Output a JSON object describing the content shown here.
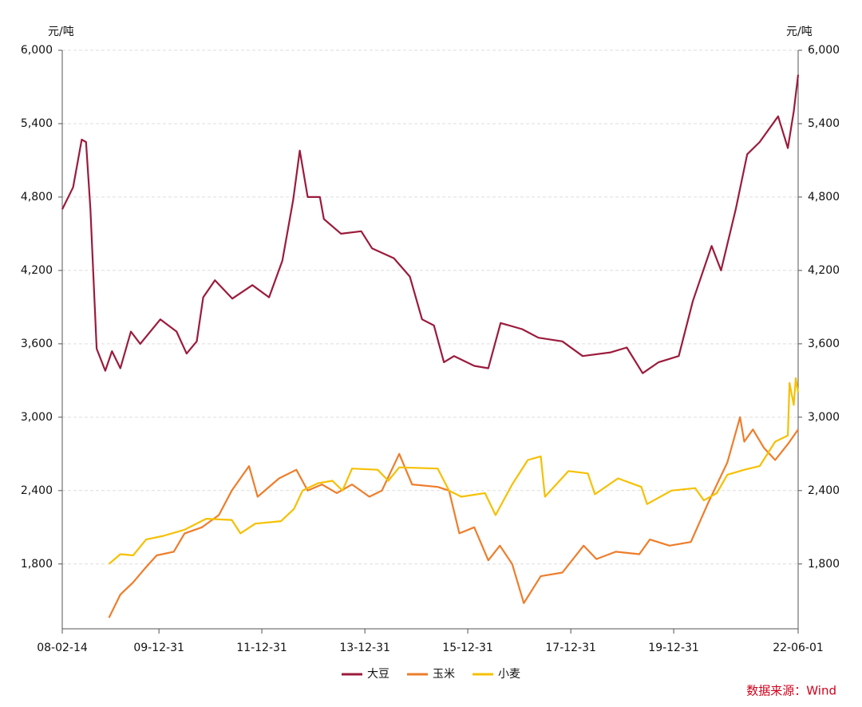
{
  "chart_data": {
    "type": "line",
    "y_unit": "元/吨",
    "source": "数据来源：Wind",
    "xlim": [
      "2008-02-14",
      "2022-06-01"
    ],
    "xticks": [
      {
        "value": "2008-02-14",
        "label": "08-02-14"
      },
      {
        "value": "2009-12-31",
        "label": "09-12-31"
      },
      {
        "value": "2011-12-31",
        "label": "11-12-31"
      },
      {
        "value": "2013-12-31",
        "label": "13-12-31"
      },
      {
        "value": "2015-12-31",
        "label": "15-12-31"
      },
      {
        "value": "2017-12-31",
        "label": "17-12-31"
      },
      {
        "value": "2019-12-31",
        "label": "19-12-31"
      },
      {
        "value": "2022-06-01",
        "label": "22-06-01"
      }
    ],
    "ylim": [
      1270,
      6000
    ],
    "yticks": [
      {
        "value": 1800,
        "label": "1,800"
      },
      {
        "value": 2400,
        "label": "2,400"
      },
      {
        "value": 3000,
        "label": "3,000"
      },
      {
        "value": 3600,
        "label": "3,600"
      },
      {
        "value": 4200,
        "label": "4,200"
      },
      {
        "value": 4800,
        "label": "4,800"
      },
      {
        "value": 5400,
        "label": "5,400"
      },
      {
        "value": 6000,
        "label": "6,000"
      }
    ],
    "grid": true,
    "legend": "bottom",
    "series": [
      {
        "name": "大豆",
        "color": "#9b1b3c",
        "x": [
          "2008-02-14",
          "2008-05-01",
          "2008-07-01",
          "2008-08-01",
          "2008-09-01",
          "2008-10-15",
          "2008-12-15",
          "2009-02-01",
          "2009-04-01",
          "2009-06-15",
          "2009-08-20",
          "2010-01-10",
          "2010-05-05",
          "2010-07-15",
          "2010-09-25",
          "2010-11-10",
          "2011-02-01",
          "2011-06-05",
          "2011-10-25",
          "2012-02-20",
          "2012-05-25",
          "2012-08-10",
          "2012-09-25",
          "2012-11-20",
          "2013-02-15",
          "2013-03-15",
          "2013-07-15",
          "2013-12-05",
          "2014-02-20",
          "2014-07-25",
          "2014-11-15",
          "2015-02-10",
          "2015-05-05",
          "2015-07-15",
          "2015-09-25",
          "2016-02-15",
          "2016-05-25",
          "2016-08-20",
          "2017-01-20",
          "2017-05-15",
          "2017-11-01",
          "2018-03-25",
          "2018-10-10",
          "2019-02-01",
          "2019-05-25",
          "2019-09-15",
          "2020-02-05",
          "2020-05-15",
          "2020-09-25",
          "2020-12-01",
          "2021-03-15",
          "2021-06-05",
          "2021-09-01",
          "2022-01-10",
          "2022-03-20",
          "2022-05-01",
          "2022-06-01"
        ],
        "values": [
          4700,
          4880,
          5270,
          5250,
          4700,
          3560,
          3380,
          3540,
          3400,
          3700,
          3600,
          3800,
          3700,
          3520,
          3620,
          3980,
          4120,
          3970,
          4080,
          3980,
          4280,
          4780,
          5180,
          4800,
          4800,
          4620,
          4500,
          4520,
          4380,
          4300,
          4150,
          3800,
          3750,
          3450,
          3500,
          3420,
          3400,
          3770,
          3720,
          3650,
          3620,
          3500,
          3530,
          3570,
          3360,
          3450,
          3500,
          3950,
          4400,
          4200,
          4700,
          5150,
          5250,
          5460,
          5200,
          5500,
          5800
        ]
      },
      {
        "name": "玉米",
        "color": "#ee7d2b",
        "x": [
          "2009-01-10",
          "2009-04-01",
          "2009-07-01",
          "2009-09-20",
          "2009-12-15",
          "2010-04-15",
          "2010-07-01",
          "2010-11-01",
          "2011-03-01",
          "2011-06-01",
          "2011-10-01",
          "2011-12-01",
          "2012-05-01",
          "2012-09-01",
          "2012-11-20",
          "2013-03-01",
          "2013-06-15",
          "2013-10-01",
          "2014-02-01",
          "2014-05-01",
          "2014-09-01",
          "2014-12-01",
          "2015-06-01",
          "2015-08-20",
          "2015-11-01",
          "2016-02-15",
          "2016-05-25",
          "2016-08-15",
          "2016-11-10",
          "2017-02-01",
          "2017-06-01",
          "2017-11-01",
          "2018-04-01",
          "2018-07-01",
          "2018-11-15",
          "2019-05-01",
          "2019-07-15",
          "2019-12-01",
          "2020-05-01",
          "2020-09-01",
          "2021-01-15",
          "2021-04-15",
          "2021-05-15",
          "2021-07-15",
          "2021-10-01",
          "2021-12-20",
          "2022-03-20",
          "2022-06-01"
        ],
        "values": [
          1360,
          1550,
          1650,
          1760,
          1870,
          1900,
          2050,
          2100,
          2200,
          2400,
          2600,
          2350,
          2500,
          2570,
          2400,
          2450,
          2380,
          2450,
          2350,
          2400,
          2700,
          2450,
          2430,
          2400,
          2050,
          2100,
          1830,
          1950,
          1800,
          1480,
          1700,
          1730,
          1950,
          1840,
          1900,
          1880,
          2000,
          1950,
          1980,
          2300,
          2630,
          3000,
          2800,
          2900,
          2750,
          2650,
          2780,
          2900
        ]
      },
      {
        "name": "小麦",
        "color": "#f6c001",
        "x": [
          "2009-01-10",
          "2009-04-01",
          "2009-07-01",
          "2009-10-01",
          "2010-02-01",
          "2010-07-01",
          "2010-12-01",
          "2011-06-01",
          "2011-08-01",
          "2011-11-15",
          "2012-05-15",
          "2012-08-15",
          "2012-10-15",
          "2013-02-01",
          "2013-05-15",
          "2013-07-25",
          "2013-10-01",
          "2014-04-01",
          "2014-06-15",
          "2014-09-01",
          "2015-06-01",
          "2015-08-20",
          "2015-11-15",
          "2016-05-01",
          "2016-07-15",
          "2016-11-10",
          "2017-03-01",
          "2017-06-01",
          "2017-07-01",
          "2017-12-15",
          "2018-05-01",
          "2018-06-20",
          "2018-12-01",
          "2019-05-15",
          "2019-06-25",
          "2019-12-15",
          "2020-06-01",
          "2020-08-01",
          "2020-11-01",
          "2021-01-15",
          "2021-05-15",
          "2021-09-01",
          "2021-12-20",
          "2022-03-20",
          "2022-04-01",
          "2022-05-01",
          "2022-05-15",
          "2022-06-01"
        ],
        "values": [
          1800,
          1880,
          1870,
          2000,
          2030,
          2080,
          2170,
          2160,
          2050,
          2130,
          2150,
          2250,
          2400,
          2460,
          2480,
          2400,
          2580,
          2570,
          2480,
          2590,
          2580,
          2400,
          2350,
          2380,
          2200,
          2450,
          2650,
          2680,
          2350,
          2560,
          2540,
          2370,
          2500,
          2430,
          2290,
          2400,
          2420,
          2320,
          2380,
          2530,
          2570,
          2600,
          2800,
          2850,
          3280,
          3100,
          3320,
          3200
        ]
      }
    ]
  }
}
